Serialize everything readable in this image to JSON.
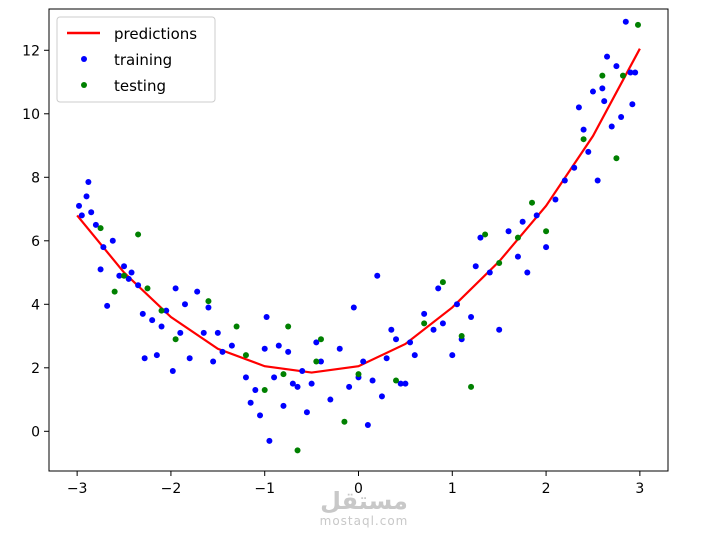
{
  "chart_data": {
    "type": "scatter",
    "title": "",
    "xlabel": "",
    "ylabel": "",
    "xlim": [
      -3.3,
      3.3
    ],
    "ylim": [
      -1.25,
      13.3
    ],
    "xticks": [
      -3,
      -2,
      -1,
      0,
      1,
      2,
      3
    ],
    "xtick_labels": [
      "−3",
      "−2",
      "−1",
      "0",
      "1",
      "2",
      "3"
    ],
    "yticks": [
      0,
      2,
      4,
      6,
      8,
      10,
      12
    ],
    "ytick_labels": [
      "0",
      "2",
      "4",
      "6",
      "8",
      "10",
      "12"
    ],
    "grid": false,
    "legend_position": "upper-left",
    "series": [
      {
        "name": "predictions",
        "kind": "line",
        "color": "#ff0000",
        "x": [
          -3.0,
          -2.5,
          -2.0,
          -1.5,
          -1.0,
          -0.5,
          0.0,
          0.5,
          1.0,
          1.5,
          2.0,
          2.5,
          3.0
        ],
        "y": [
          6.8,
          5.0,
          3.6,
          2.6,
          2.05,
          1.85,
          2.05,
          2.75,
          3.9,
          5.35,
          7.1,
          9.3,
          12.05
        ]
      },
      {
        "name": "training",
        "kind": "scatter",
        "color": "#0000ff",
        "x": [
          -2.98,
          -2.95,
          -2.9,
          -2.88,
          -2.85,
          -2.8,
          -2.75,
          -2.72,
          -2.68,
          -2.62,
          -2.55,
          -2.5,
          -2.45,
          -2.42,
          -2.35,
          -2.3,
          -2.28,
          -2.2,
          -2.15,
          -2.1,
          -2.05,
          -1.98,
          -1.95,
          -1.9,
          -1.85,
          -1.8,
          -1.72,
          -1.65,
          -1.6,
          -1.55,
          -1.5,
          -1.45,
          -1.35,
          -1.2,
          -1.15,
          -1.1,
          -1.05,
          -1.0,
          -0.98,
          -0.95,
          -0.9,
          -0.85,
          -0.8,
          -0.75,
          -0.7,
          -0.65,
          -0.6,
          -0.55,
          -0.5,
          -0.45,
          -0.4,
          -0.3,
          -0.2,
          -0.1,
          -0.05,
          0.0,
          0.05,
          0.1,
          0.15,
          0.2,
          0.25,
          0.3,
          0.35,
          0.4,
          0.45,
          0.5,
          0.55,
          0.6,
          0.7,
          0.8,
          0.85,
          0.9,
          1.0,
          1.05,
          1.1,
          1.2,
          1.25,
          1.3,
          1.4,
          1.5,
          1.6,
          1.7,
          1.75,
          1.8,
          1.9,
          2.0,
          2.1,
          2.2,
          2.3,
          2.35,
          2.4,
          2.45,
          2.5,
          2.55,
          2.6,
          2.62,
          2.65,
          2.7,
          2.75,
          2.8,
          2.85,
          2.9,
          2.92,
          2.95
        ],
        "y": [
          7.1,
          6.8,
          7.4,
          7.85,
          6.9,
          6.5,
          5.1,
          5.8,
          3.95,
          6.0,
          4.9,
          5.2,
          4.8,
          5.0,
          4.6,
          3.7,
          2.3,
          3.5,
          2.4,
          3.3,
          3.8,
          1.9,
          4.5,
          3.1,
          4.0,
          2.3,
          4.4,
          3.1,
          3.9,
          2.2,
          3.1,
          2.5,
          2.7,
          1.7,
          0.9,
          1.3,
          0.5,
          2.6,
          3.6,
          -0.3,
          1.7,
          2.7,
          0.8,
          2.5,
          1.5,
          1.4,
          1.9,
          0.6,
          1.5,
          2.8,
          2.2,
          1.0,
          2.6,
          1.4,
          3.9,
          1.7,
          2.2,
          0.2,
          1.6,
          4.9,
          1.1,
          2.3,
          3.2,
          2.9,
          1.5,
          1.5,
          2.8,
          2.4,
          3.7,
          3.2,
          4.5,
          3.4,
          2.4,
          4.0,
          2.9,
          3.6,
          5.2,
          6.1,
          5.0,
          3.2,
          6.3,
          5.5,
          6.6,
          5.0,
          6.8,
          5.8,
          7.3,
          7.9,
          8.3,
          10.2,
          9.5,
          8.8,
          10.7,
          7.9,
          10.8,
          10.4,
          11.8,
          9.6,
          11.5,
          9.9,
          12.9,
          11.3,
          10.3,
          11.3
        ]
      },
      {
        "name": "testing",
        "kind": "scatter",
        "color": "#008000",
        "x": [
          -2.75,
          -2.6,
          -2.5,
          -2.35,
          -2.25,
          -2.1,
          -1.95,
          -1.6,
          -1.3,
          -1.2,
          -1.0,
          -0.8,
          -0.75,
          -0.65,
          -0.45,
          -0.4,
          -0.15,
          0.0,
          0.4,
          0.7,
          0.9,
          1.1,
          1.2,
          1.35,
          1.5,
          1.7,
          1.85,
          2.0,
          2.4,
          2.6,
          2.75,
          2.82,
          2.98
        ],
        "y": [
          6.4,
          4.4,
          4.9,
          6.2,
          4.5,
          3.8,
          2.9,
          4.1,
          3.3,
          2.4,
          1.3,
          1.8,
          3.3,
          -0.6,
          2.2,
          2.9,
          0.3,
          1.8,
          1.6,
          3.4,
          4.7,
          3.0,
          1.4,
          6.2,
          5.3,
          6.1,
          7.2,
          6.3,
          9.2,
          11.2,
          8.6,
          11.2,
          12.8
        ]
      }
    ]
  },
  "watermark": {
    "main": "مستقل",
    "sub": "mostaql.com"
  }
}
